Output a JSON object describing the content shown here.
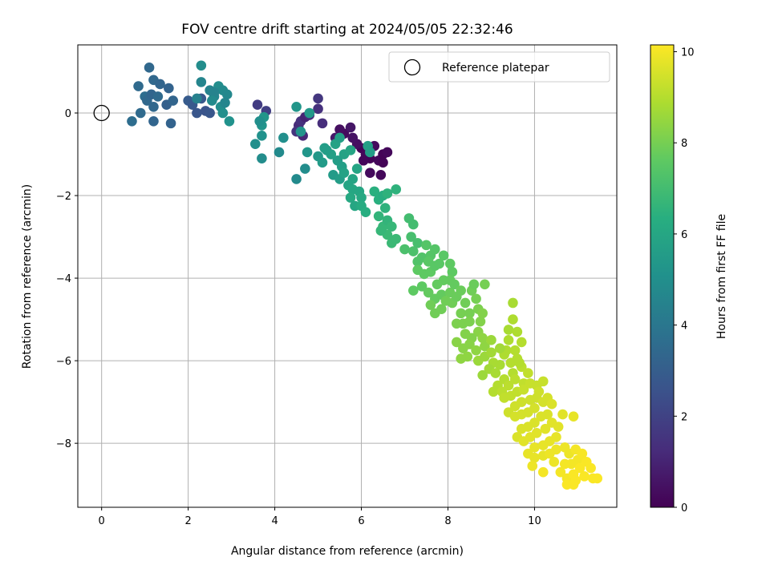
{
  "chart_data": {
    "type": "scatter",
    "title": "FOV centre drift starting at 2024/05/05 22:32:46",
    "xlabel": "Angular distance from reference (arcmin)",
    "ylabel": "Rotation from reference (arcmin)",
    "xlim": [
      -0.55,
      11.9
    ],
    "ylim": [
      -9.55,
      1.65
    ],
    "xticks": [
      0,
      2,
      4,
      6,
      8,
      10
    ],
    "yticks": [
      0,
      -2,
      -4,
      -6,
      -8
    ],
    "grid": true,
    "legend": {
      "entries": [
        "Reference platepar"
      ],
      "placement": "top-right"
    },
    "reference_point": {
      "x": 0,
      "y": 0,
      "label": "Reference platepar"
    },
    "colorbar": {
      "label": "Hours from first FF file",
      "range": [
        0,
        10.15
      ],
      "ticks": [
        0,
        2,
        4,
        6,
        8,
        10
      ],
      "colormap": "viridis"
    },
    "points": [
      [
        6.0,
        -0.85,
        0.1
      ],
      [
        6.1,
        -1.0,
        0.2
      ],
      [
        6.2,
        -1.1,
        0.1
      ],
      [
        6.3,
        -0.8,
        0.3
      ],
      [
        6.4,
        -1.15,
        0.2
      ],
      [
        6.5,
        -1.0,
        0.1
      ],
      [
        6.6,
        -0.95,
        0.2
      ],
      [
        6.2,
        -1.45,
        0.3
      ],
      [
        6.45,
        -1.5,
        0.2
      ],
      [
        5.9,
        -0.75,
        0.4
      ],
      [
        5.8,
        -0.6,
        0.5
      ],
      [
        5.6,
        -0.5,
        0.3
      ],
      [
        5.5,
        -0.4,
        0.4
      ],
      [
        5.75,
        -0.35,
        0.6
      ],
      [
        5.4,
        -0.6,
        0.7
      ],
      [
        6.5,
        -1.2,
        0.1
      ],
      [
        6.05,
        -1.15,
        0.15
      ],
      [
        4.55,
        -0.3,
        1.2
      ],
      [
        4.6,
        -0.2,
        1.4
      ],
      [
        4.7,
        -0.1,
        1.0
      ],
      [
        4.5,
        -0.45,
        1.5
      ],
      [
        4.8,
        -0.05,
        1.3
      ],
      [
        5.0,
        0.35,
        1.6
      ],
      [
        5.0,
        0.1,
        1.4
      ],
      [
        3.6,
        0.2,
        1.8
      ],
      [
        3.8,
        0.05,
        1.9
      ],
      [
        4.65,
        -0.55,
        1.1
      ],
      [
        5.1,
        -0.25,
        1.3
      ],
      [
        0.7,
        -0.2,
        3.6
      ],
      [
        0.9,
        0.0,
        3.5
      ],
      [
        1.2,
        -0.2,
        3.3
      ],
      [
        1.6,
        -0.25,
        3.2
      ],
      [
        1.0,
        0.4,
        3.6
      ],
      [
        1.05,
        0.3,
        3.4
      ],
      [
        1.15,
        0.45,
        3.3
      ],
      [
        1.3,
        0.4,
        3.5
      ],
      [
        1.2,
        0.15,
        3.4
      ],
      [
        1.5,
        0.2,
        3.1
      ],
      [
        1.65,
        0.3,
        3.3
      ],
      [
        0.85,
        0.65,
        3.5
      ],
      [
        1.2,
        0.8,
        3.4
      ],
      [
        1.35,
        0.7,
        3.3
      ],
      [
        1.55,
        0.6,
        3.2
      ],
      [
        1.1,
        1.1,
        3.4
      ],
      [
        2.0,
        0.3,
        2.9
      ],
      [
        2.1,
        0.2,
        2.8
      ],
      [
        2.2,
        0.0,
        2.7
      ],
      [
        2.4,
        0.05,
        2.6
      ],
      [
        2.3,
        0.35,
        2.8
      ],
      [
        2.5,
        0.0,
        2.7
      ],
      [
        2.3,
        1.15,
        4.9
      ],
      [
        2.3,
        0.75,
        4.6
      ],
      [
        2.5,
        0.55,
        4.5
      ],
      [
        2.6,
        0.4,
        4.6
      ],
      [
        2.7,
        0.65,
        4.9
      ],
      [
        2.8,
        0.55,
        4.8
      ],
      [
        2.9,
        0.45,
        4.7
      ],
      [
        2.75,
        0.15,
        4.9
      ],
      [
        2.8,
        0.0,
        5.0
      ],
      [
        2.95,
        -0.2,
        5.1
      ],
      [
        2.2,
        0.35,
        4.4
      ],
      [
        2.6,
        0.5,
        4.5
      ],
      [
        2.85,
        0.25,
        4.6
      ],
      [
        2.55,
        0.3,
        4.8
      ],
      [
        3.55,
        -0.75,
        5.0
      ],
      [
        3.7,
        -0.55,
        5.1
      ],
      [
        3.7,
        -0.3,
        5.2
      ],
      [
        3.75,
        -0.1,
        5.3
      ],
      [
        3.65,
        -0.2,
        5.0
      ],
      [
        3.7,
        -1.1,
        4.9
      ],
      [
        4.1,
        -0.95,
        4.8
      ],
      [
        4.2,
        -0.6,
        5.0
      ],
      [
        4.5,
        -1.6,
        4.8
      ],
      [
        4.7,
        -1.35,
        4.9
      ],
      [
        4.6,
        -0.45,
        5.2
      ],
      [
        4.75,
        -0.95,
        5.3
      ],
      [
        4.8,
        0.0,
        5.4
      ],
      [
        4.5,
        0.15,
        5.3
      ],
      [
        5.0,
        -1.05,
        5.4
      ],
      [
        5.1,
        -1.2,
        5.5
      ],
      [
        5.15,
        -0.85,
        5.6
      ],
      [
        5.3,
        -1.0,
        5.7
      ],
      [
        5.4,
        -0.75,
        5.8
      ],
      [
        5.35,
        -1.5,
        5.5
      ],
      [
        5.5,
        -1.6,
        5.6
      ],
      [
        5.55,
        -1.3,
        5.7
      ],
      [
        5.6,
        -1.0,
        5.8
      ],
      [
        5.75,
        -0.9,
        5.9
      ],
      [
        5.7,
        -1.75,
        5.9
      ],
      [
        5.8,
        -1.85,
        6.0
      ],
      [
        5.75,
        -2.05,
        6.1
      ],
      [
        5.85,
        -2.25,
        6.0
      ],
      [
        5.95,
        -1.9,
        6.0
      ],
      [
        6.0,
        -2.05,
        6.1
      ],
      [
        5.8,
        -1.6,
        5.9
      ],
      [
        5.5,
        -0.6,
        5.7
      ],
      [
        5.6,
        -1.45,
        5.8
      ],
      [
        5.45,
        -1.15,
        5.6
      ],
      [
        5.9,
        -1.35,
        5.9
      ],
      [
        6.2,
        -0.95,
        5.6
      ],
      [
        6.15,
        -0.8,
        5.7
      ],
      [
        5.2,
        -0.9,
        5.6
      ],
      [
        6.0,
        -2.25,
        6.2
      ],
      [
        6.1,
        -2.4,
        6.3
      ],
      [
        6.3,
        -1.9,
        6.4
      ],
      [
        6.4,
        -2.1,
        6.4
      ],
      [
        6.5,
        -2.0,
        6.3
      ],
      [
        6.6,
        -1.95,
        6.5
      ],
      [
        6.8,
        -1.85,
        6.5
      ],
      [
        6.55,
        -2.3,
        6.5
      ],
      [
        6.4,
        -2.5,
        6.6
      ],
      [
        6.5,
        -2.75,
        6.7
      ],
      [
        6.6,
        -2.6,
        6.6
      ],
      [
        6.7,
        -2.75,
        6.7
      ],
      [
        6.6,
        -2.95,
        6.8
      ],
      [
        6.7,
        -3.15,
        6.8
      ],
      [
        6.8,
        -3.05,
        6.8
      ],
      [
        6.45,
        -2.85,
        6.7
      ],
      [
        7.1,
        -2.55,
        7.0
      ],
      [
        7.2,
        -2.7,
        7.0
      ],
      [
        7.15,
        -3.0,
        7.1
      ],
      [
        7.3,
        -3.15,
        7.1
      ],
      [
        7.0,
        -3.3,
        7.2
      ],
      [
        7.2,
        -3.35,
        7.2
      ],
      [
        7.3,
        -3.6,
        7.3
      ],
      [
        7.4,
        -3.5,
        7.3
      ],
      [
        7.5,
        -3.2,
        7.4
      ],
      [
        7.6,
        -3.45,
        7.4
      ],
      [
        7.7,
        -3.3,
        7.4
      ],
      [
        7.55,
        -3.6,
        7.5
      ],
      [
        7.3,
        -3.8,
        7.6
      ],
      [
        7.45,
        -3.9,
        7.6
      ],
      [
        7.2,
        -4.3,
        7.6
      ],
      [
        7.4,
        -4.2,
        7.6
      ],
      [
        7.6,
        -3.85,
        7.6
      ],
      [
        7.7,
        -3.7,
        7.5
      ],
      [
        7.8,
        -3.65,
        7.5
      ],
      [
        7.9,
        -3.45,
        7.5
      ],
      [
        8.05,
        -3.65,
        7.6
      ],
      [
        8.1,
        -3.85,
        7.6
      ],
      [
        7.9,
        -4.05,
        7.7
      ],
      [
        7.75,
        -4.15,
        7.7
      ],
      [
        7.55,
        -4.35,
        7.7
      ],
      [
        7.7,
        -4.5,
        7.7
      ],
      [
        7.85,
        -4.4,
        7.7
      ],
      [
        8.05,
        -4.35,
        7.8
      ],
      [
        8.15,
        -4.15,
        7.7
      ],
      [
        8.05,
        -4.05,
        7.7
      ],
      [
        7.6,
        -4.65,
        7.9
      ],
      [
        7.7,
        -4.85,
        7.9
      ],
      [
        7.85,
        -4.75,
        7.9
      ],
      [
        7.95,
        -4.55,
        7.9
      ],
      [
        8.1,
        -4.6,
        7.9
      ],
      [
        8.2,
        -4.45,
        7.8
      ],
      [
        8.3,
        -4.3,
        7.8
      ],
      [
        8.4,
        -4.6,
        7.9
      ],
      [
        8.55,
        -4.3,
        7.9
      ],
      [
        8.6,
        -4.15,
        7.8
      ],
      [
        8.85,
        -4.15,
        8.0
      ],
      [
        8.65,
        -4.5,
        8.0
      ],
      [
        8.7,
        -4.75,
        8.1
      ],
      [
        8.5,
        -4.85,
        8.0
      ],
      [
        8.3,
        -4.85,
        8.0
      ],
      [
        8.2,
        -5.1,
        8.1
      ],
      [
        8.35,
        -5.1,
        8.1
      ],
      [
        8.5,
        -5.05,
        8.1
      ],
      [
        8.75,
        -5.05,
        8.2
      ],
      [
        8.8,
        -4.85,
        8.2
      ],
      [
        8.7,
        -5.3,
        8.3
      ],
      [
        8.55,
        -5.45,
        8.2
      ],
      [
        8.4,
        -5.35,
        8.2
      ],
      [
        8.2,
        -5.55,
        8.3
      ],
      [
        8.35,
        -5.7,
        8.3
      ],
      [
        8.5,
        -5.6,
        8.3
      ],
      [
        8.65,
        -5.75,
        8.4
      ],
      [
        8.85,
        -5.65,
        8.4
      ],
      [
        8.8,
        -5.45,
        8.4
      ],
      [
        8.3,
        -5.95,
        8.4
      ],
      [
        8.45,
        -5.9,
        8.4
      ],
      [
        8.7,
        -6.0,
        8.6
      ],
      [
        8.85,
        -5.9,
        8.6
      ],
      [
        9.0,
        -5.8,
        8.7
      ],
      [
        9.05,
        -6.05,
        8.8
      ],
      [
        8.95,
        -6.2,
        8.7
      ],
      [
        8.8,
        -6.35,
        8.6
      ],
      [
        9.1,
        -6.3,
        8.8
      ],
      [
        9.2,
        -6.1,
        8.8
      ],
      [
        9.3,
        -5.85,
        8.9
      ],
      [
        9.4,
        -5.5,
        8.9
      ],
      [
        9.35,
        -5.75,
        8.9
      ],
      [
        9.45,
        -6.05,
        9.0
      ],
      [
        9.55,
        -5.75,
        9.0
      ],
      [
        9.6,
        -5.95,
        9.0
      ],
      [
        9.7,
        -6.15,
        9.1
      ],
      [
        9.5,
        -6.3,
        9.0
      ],
      [
        9.3,
        -6.45,
        9.0
      ],
      [
        9.15,
        -6.6,
        9.0
      ],
      [
        9.05,
        -6.75,
        9.0
      ],
      [
        9.25,
        -6.75,
        9.1
      ],
      [
        9.4,
        -6.6,
        9.1
      ],
      [
        9.55,
        -6.45,
        9.1
      ],
      [
        9.75,
        -6.55,
        9.2
      ],
      [
        9.85,
        -6.3,
        9.2
      ],
      [
        9.5,
        -4.6,
        8.8
      ],
      [
        9.5,
        -5.0,
        8.9
      ],
      [
        9.4,
        -5.25,
        8.8
      ],
      [
        9.6,
        -5.3,
        8.9
      ],
      [
        9.7,
        -5.55,
        9.0
      ],
      [
        9.3,
        -6.9,
        9.2
      ],
      [
        9.45,
        -6.85,
        9.2
      ],
      [
        9.6,
        -6.75,
        9.2
      ],
      [
        9.75,
        -6.7,
        9.3
      ],
      [
        9.9,
        -6.55,
        9.3
      ],
      [
        10.05,
        -6.6,
        9.3
      ],
      [
        10.05,
        -6.9,
        9.4
      ],
      [
        9.9,
        -6.95,
        9.4
      ],
      [
        9.7,
        -7.0,
        9.4
      ],
      [
        9.55,
        -7.1,
        9.4
      ],
      [
        9.4,
        -7.25,
        9.4
      ],
      [
        9.55,
        -7.35,
        9.5
      ],
      [
        9.7,
        -7.3,
        9.5
      ],
      [
        9.85,
        -7.25,
        9.5
      ],
      [
        10.0,
        -7.15,
        9.5
      ],
      [
        10.2,
        -7.0,
        9.5
      ],
      [
        10.3,
        -6.9,
        9.5
      ],
      [
        10.4,
        -7.05,
        9.6
      ],
      [
        10.3,
        -7.3,
        9.6
      ],
      [
        10.15,
        -7.35,
        9.6
      ],
      [
        10.0,
        -7.5,
        9.6
      ],
      [
        9.85,
        -7.6,
        9.6
      ],
      [
        9.7,
        -7.65,
        9.6
      ],
      [
        9.6,
        -7.85,
        9.6
      ],
      [
        9.75,
        -7.95,
        9.7
      ],
      [
        9.9,
        -7.85,
        9.7
      ],
      [
        10.05,
        -7.75,
        9.7
      ],
      [
        10.25,
        -7.65,
        9.7
      ],
      [
        10.4,
        -7.5,
        9.7
      ],
      [
        10.55,
        -7.6,
        9.7
      ],
      [
        10.5,
        -7.85,
        9.8
      ],
      [
        10.35,
        -7.95,
        9.8
      ],
      [
        10.2,
        -8.05,
        9.8
      ],
      [
        10.0,
        -8.1,
        9.8
      ],
      [
        9.85,
        -8.25,
        9.8
      ],
      [
        10.0,
        -8.35,
        9.8
      ],
      [
        10.2,
        -8.3,
        9.8
      ],
      [
        10.35,
        -8.25,
        9.9
      ],
      [
        10.5,
        -8.15,
        9.9
      ],
      [
        10.7,
        -8.1,
        9.9
      ],
      [
        10.8,
        -8.25,
        9.9
      ],
      [
        10.95,
        -8.15,
        10.0
      ],
      [
        11.0,
        -8.4,
        10.0
      ],
      [
        10.85,
        -8.5,
        10.0
      ],
      [
        10.7,
        -8.5,
        10.0
      ],
      [
        10.6,
        -8.7,
        10.0
      ],
      [
        10.75,
        -8.85,
        10.0
      ],
      [
        10.9,
        -8.75,
        10.1
      ],
      [
        11.05,
        -8.6,
        10.1
      ],
      [
        11.2,
        -8.45,
        10.1
      ],
      [
        11.3,
        -8.6,
        10.1
      ],
      [
        11.15,
        -8.8,
        10.1
      ],
      [
        10.95,
        -8.9,
        10.1
      ],
      [
        10.75,
        -9.0,
        10.1
      ],
      [
        11.35,
        -8.85,
        10.1
      ],
      [
        11.45,
        -8.85,
        10.1
      ],
      [
        10.2,
        -8.7,
        10.0
      ],
      [
        10.9,
        -7.35,
        9.8
      ],
      [
        9.95,
        -8.55,
        9.9
      ],
      [
        10.45,
        -8.45,
        9.9
      ],
      [
        10.9,
        -9.0,
        10.1
      ],
      [
        11.1,
        -8.25,
        10.05
      ],
      [
        10.65,
        -7.3,
        9.7
      ],
      [
        10.1,
        -6.75,
        9.4
      ],
      [
        10.2,
        -6.5,
        9.3
      ],
      [
        9.65,
        -6.05,
        9.0
      ],
      [
        9.0,
        -5.5,
        8.6
      ],
      [
        9.2,
        -5.7,
        8.7
      ]
    ]
  }
}
